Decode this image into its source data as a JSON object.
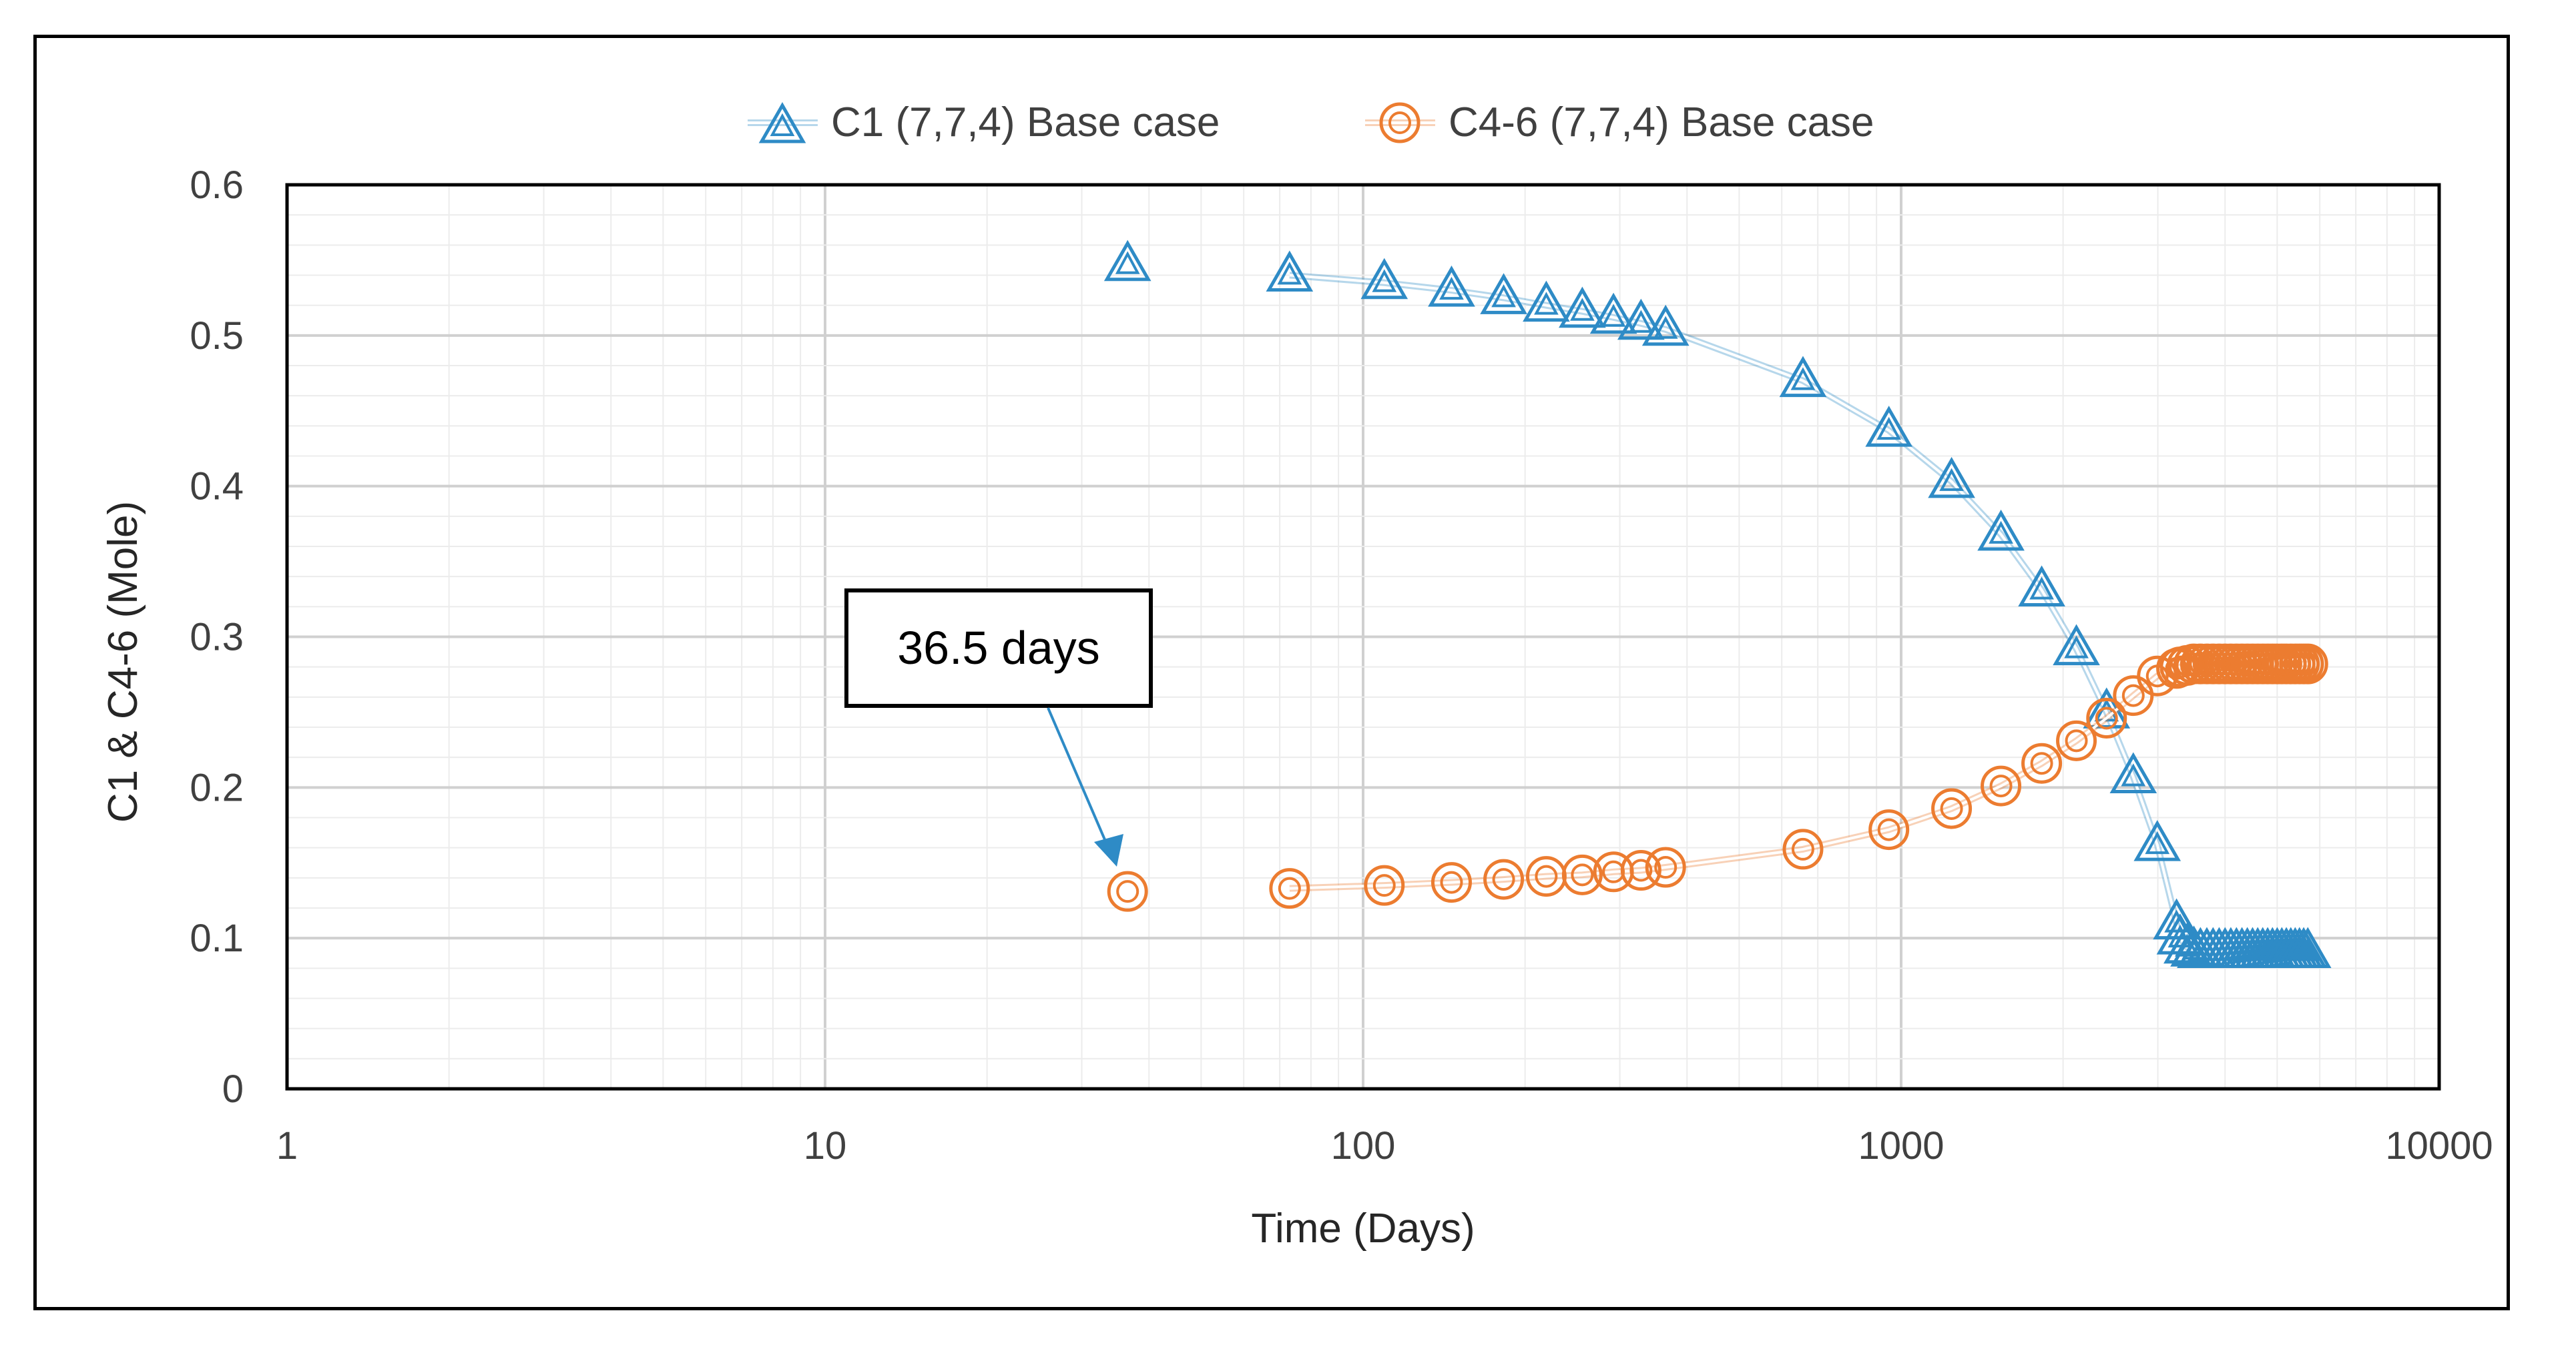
{
  "chart_data": {
    "type": "line",
    "title": "",
    "xlabel": "Time (Days)",
    "ylabel": "C1 & C4-6 (Mole)",
    "xscale": "log",
    "xlim": [
      1,
      10000
    ],
    "ylim": [
      0,
      0.6
    ],
    "x_ticks": [
      "1",
      "10",
      "100",
      "1000",
      "10000"
    ],
    "y_ticks": [
      "0",
      "0.1",
      "0.2",
      "0.3",
      "0.4",
      "0.5",
      "0.6"
    ],
    "grid": true,
    "legend": "top",
    "series": [
      {
        "name": "C1 (7,7,4) Base case",
        "color": "#2e8bc6",
        "marker": "triangle",
        "x": [
          36.5,
          73,
          109.5,
          146,
          182.5,
          219,
          255.5,
          292,
          328.5,
          365,
          657,
          949,
          1241,
          1533,
          1825,
          2117,
          2409,
          2701,
          2993,
          3250,
          3300,
          3400,
          3500,
          3600,
          3700,
          3800,
          3900,
          4000,
          4100,
          4200,
          4300,
          4400,
          4500,
          4600,
          4700,
          4800,
          4900,
          5000,
          5100,
          5200,
          5300,
          5400,
          5500,
          5600,
          5700
        ],
        "y": [
          0.547,
          0.54,
          0.535,
          0.53,
          0.525,
          0.52,
          0.516,
          0.512,
          0.508,
          0.504,
          0.47,
          0.437,
          0.403,
          0.368,
          0.331,
          0.292,
          0.25,
          0.207,
          0.162,
          0.11,
          0.1,
          0.094,
          0.092,
          0.091,
          0.091,
          0.091,
          0.091,
          0.091,
          0.091,
          0.091,
          0.091,
          0.091,
          0.091,
          0.091,
          0.091,
          0.091,
          0.091,
          0.091,
          0.091,
          0.091,
          0.091,
          0.091,
          0.091,
          0.091,
          0.091
        ]
      },
      {
        "name": "C4-6 (7,7,4) Base case",
        "color": "#ec7c30",
        "marker": "double-circle",
        "x": [
          36.5,
          73,
          109.5,
          146,
          182.5,
          219,
          255.5,
          292,
          328.5,
          365,
          657,
          949,
          1241,
          1533,
          1825,
          2117,
          2409,
          2701,
          2993,
          3250,
          3300,
          3400,
          3500,
          3600,
          3700,
          3800,
          3900,
          4000,
          4100,
          4200,
          4300,
          4400,
          4500,
          4600,
          4700,
          4800,
          4900,
          5000,
          5100,
          5200,
          5300,
          5400,
          5500,
          5600,
          5700
        ],
        "y": [
          0.131,
          0.133,
          0.135,
          0.137,
          0.139,
          0.141,
          0.142,
          0.144,
          0.145,
          0.147,
          0.159,
          0.172,
          0.186,
          0.201,
          0.216,
          0.231,
          0.246,
          0.261,
          0.274,
          0.279,
          0.28,
          0.281,
          0.282,
          0.282,
          0.282,
          0.282,
          0.282,
          0.282,
          0.282,
          0.282,
          0.282,
          0.282,
          0.282,
          0.282,
          0.282,
          0.282,
          0.282,
          0.282,
          0.282,
          0.282,
          0.282,
          0.282,
          0.282,
          0.282,
          0.282
        ]
      }
    ],
    "annotation": {
      "text": "36.5 days",
      "points_to_x": 36.5,
      "points_to_y": 0.131
    }
  }
}
